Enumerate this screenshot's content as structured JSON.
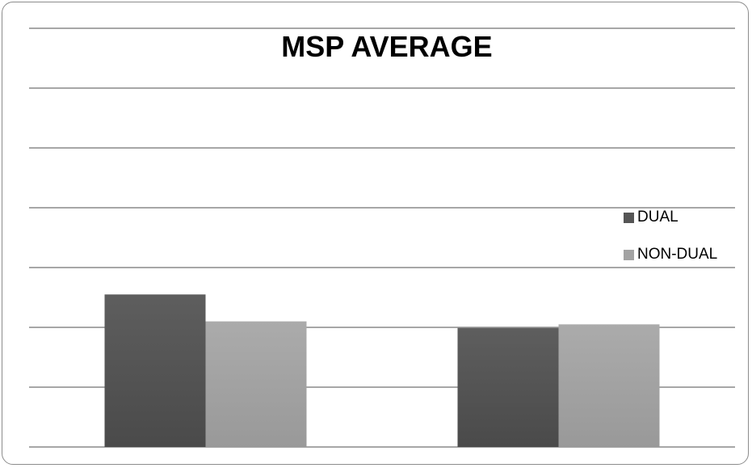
{
  "chart_data": {
    "type": "bar",
    "title": "MSP AVERAGE",
    "categories": [
      "",
      ""
    ],
    "series": [
      {
        "name": "DUAL",
        "values": [
          2.55,
          1.99
        ],
        "color": "#555555"
      },
      {
        "name": "NON-DUAL",
        "values": [
          2.1,
          2.05
        ],
        "color": "#a3a3a3"
      }
    ],
    "ylim": [
      0,
      7
    ],
    "grid": true,
    "legend_position": "right",
    "xlabel": "",
    "ylabel": ""
  }
}
